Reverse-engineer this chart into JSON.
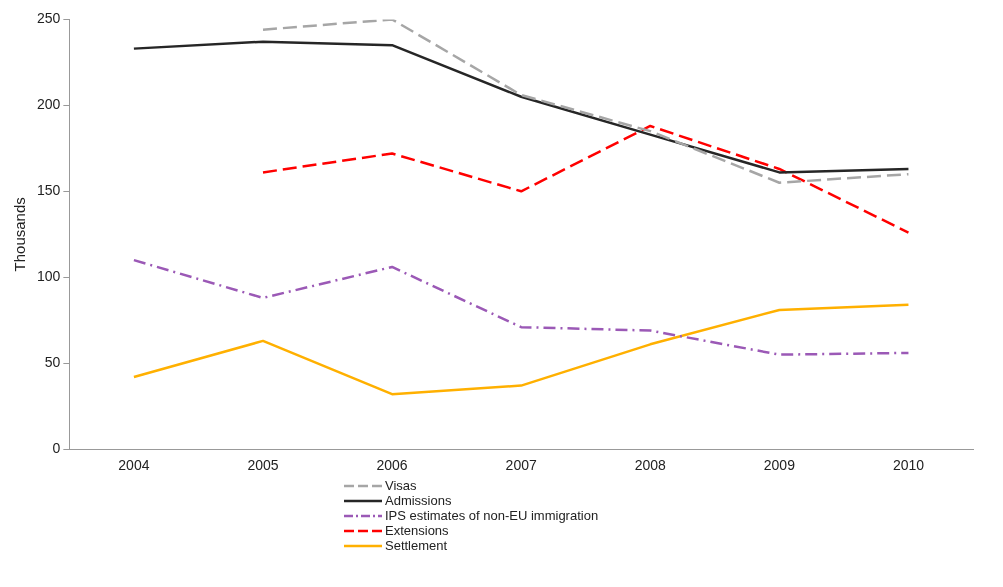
{
  "chart_data": {
    "type": "line",
    "ylabel": "Thousands",
    "categories": [
      "2004",
      "2005",
      "2006",
      "2007",
      "2008",
      "2009",
      "2010"
    ],
    "series": [
      {
        "name": "Visas",
        "color": "#a6a6a6",
        "line_style": "dashed",
        "values": [
          null,
          244,
          250,
          206,
          185,
          155,
          160
        ]
      },
      {
        "name": "Admissions",
        "color": "#262626",
        "line_style": "solid",
        "values": [
          233,
          237,
          235,
          205,
          183,
          161,
          163
        ]
      },
      {
        "name": "IPS estimates of non-EU immigration",
        "color": "#9b59b6",
        "line_style": "dashdot",
        "values": [
          110,
          88,
          106,
          71,
          69,
          55,
          56
        ]
      },
      {
        "name": "Extensions",
        "color": "#ff0000",
        "line_style": "dashed",
        "values": [
          null,
          161,
          172,
          150,
          188,
          163,
          126
        ]
      },
      {
        "name": "Settlement",
        "color": "#ffb000",
        "line_style": "solid",
        "values": [
          42,
          63,
          32,
          37,
          61,
          81,
          84
        ]
      }
    ],
    "ylim": [
      0,
      250
    ],
    "yticks": [
      0,
      50,
      100,
      150,
      200,
      250
    ],
    "grid": false,
    "legend": "bottom",
    "marker": "none"
  }
}
